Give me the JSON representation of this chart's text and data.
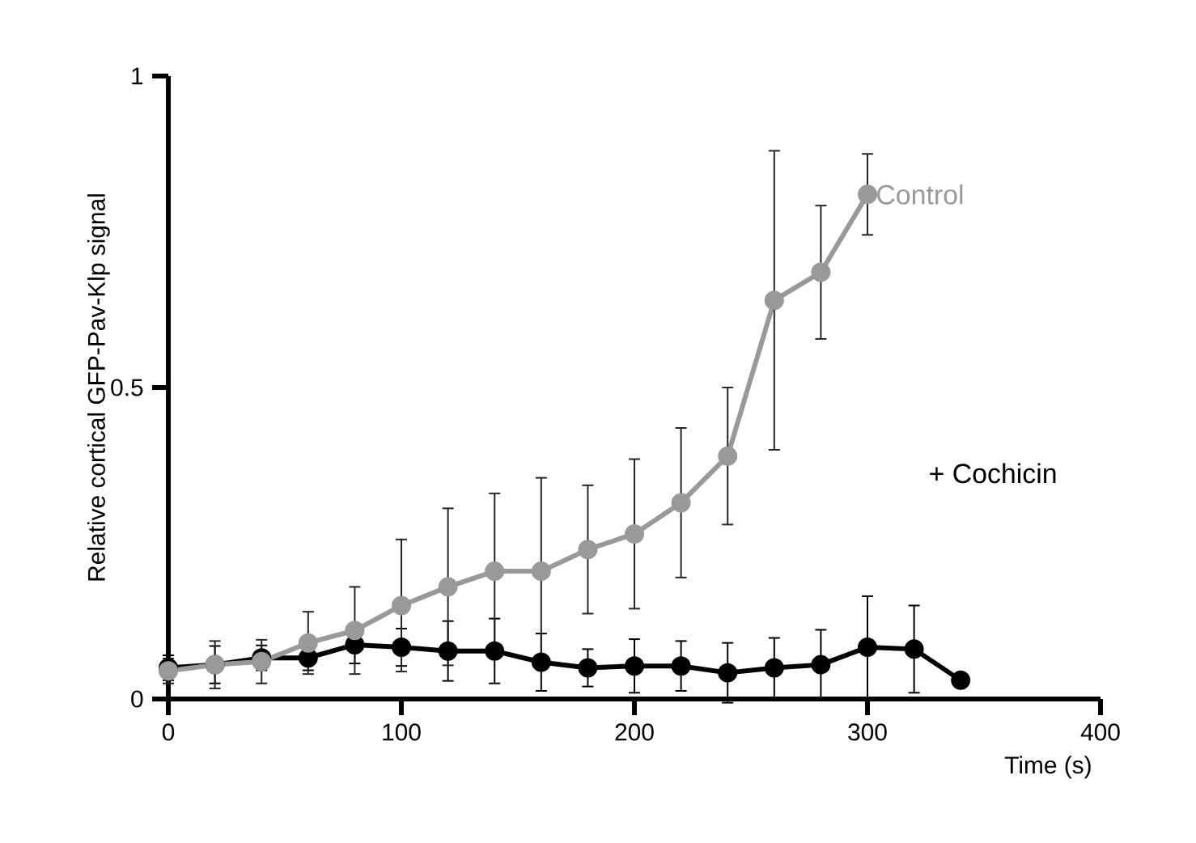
{
  "chart_data": {
    "type": "line",
    "xlabel": "Time (s)",
    "ylabel": "Relative cortical GFP-Pav-Klp signal",
    "xlim": [
      0,
      400
    ],
    "ylim": [
      0,
      1
    ],
    "xticks": [
      0,
      100,
      200,
      300,
      400
    ],
    "yticks": [
      0,
      0.5,
      1
    ],
    "marker": "circle",
    "line_style": "solid",
    "series": [
      {
        "name": "Control",
        "color": "#999999",
        "x": [
          0,
          20,
          40,
          60,
          80,
          100,
          120,
          140,
          160,
          180,
          200,
          220,
          240,
          260,
          280,
          300
        ],
        "values": [
          0.045,
          0.055,
          0.06,
          0.09,
          0.11,
          0.15,
          0.18,
          0.205,
          0.205,
          0.24,
          0.265,
          0.315,
          0.39,
          0.64,
          0.685,
          0.81
        ],
        "errors": [
          0.02,
          0.038,
          0.035,
          0.05,
          0.07,
          0.106,
          0.126,
          0.125,
          0.15,
          0.103,
          0.12,
          0.12,
          0.11,
          0.24,
          0.107,
          0.065
        ]
      },
      {
        "name": "+ Cochicin",
        "color": "#000000",
        "x": [
          0,
          20,
          40,
          60,
          80,
          100,
          120,
          140,
          160,
          180,
          200,
          220,
          240,
          260,
          280,
          300,
          320,
          340
        ],
        "values": [
          0.05,
          0.055,
          0.066,
          0.066,
          0.087,
          0.083,
          0.077,
          0.077,
          0.059,
          0.05,
          0.053,
          0.053,
          0.042,
          0.05,
          0.055,
          0.083,
          0.08,
          0.03
        ],
        "errors": [
          0.02,
          0.03,
          0.02,
          0.02,
          0.03,
          0.03,
          0.048,
          0.052,
          0.046,
          0.03,
          0.043,
          0.04,
          0.048,
          0.048,
          0.056,
          0.082,
          0.07,
          null
        ]
      }
    ]
  }
}
